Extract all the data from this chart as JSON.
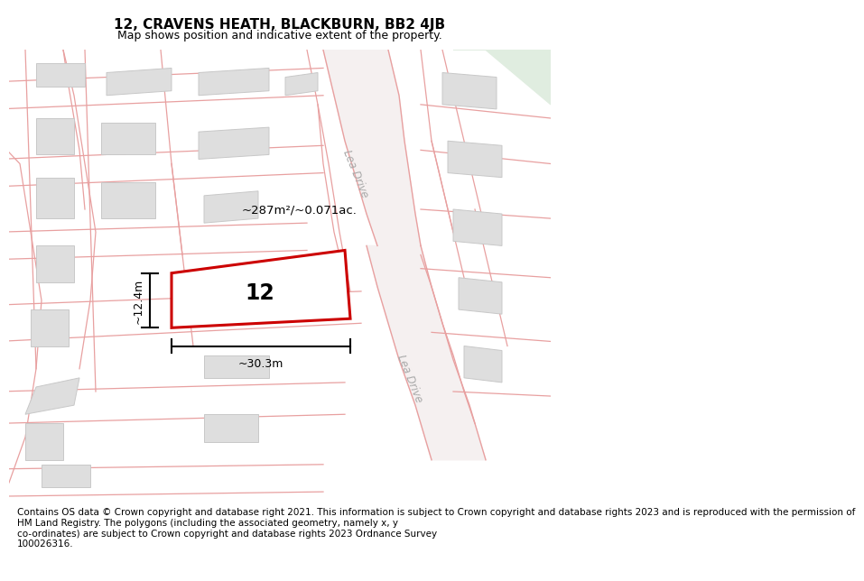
{
  "title": "12, CRAVENS HEATH, BLACKBURN, BB2 4JB",
  "subtitle": "Map shows position and indicative extent of the property.",
  "footer": "Contains OS data © Crown copyright and database right 2021. This information is subject to Crown copyright and database rights 2023 and is reproduced with the permission of\nHM Land Registry. The polygons (including the associated geometry, namely x, y\nco-ordinates) are subject to Crown copyright and database rights 2023 Ordnance Survey\n100026316.",
  "map_bg": "#f2f2f2",
  "road_line_color": "#e8a0a0",
  "building_color": "#dedede",
  "building_edge_color": "#c8c8c8",
  "road_fill_color": "#f5e0e0",
  "green_color": "#e0ede0",
  "highlight_color": "#cc0000",
  "highlight_fill": "#ffffff",
  "label_number": "12",
  "area_label": "~287m²/~0.071ac.",
  "dim_width": "~30.3m",
  "dim_height": "~12.4m",
  "road_label_1": "Lea Drive",
  "road_label_2": "Lea Drive",
  "title_fontsize": 11,
  "subtitle_fontsize": 9,
  "footer_fontsize": 7.5
}
